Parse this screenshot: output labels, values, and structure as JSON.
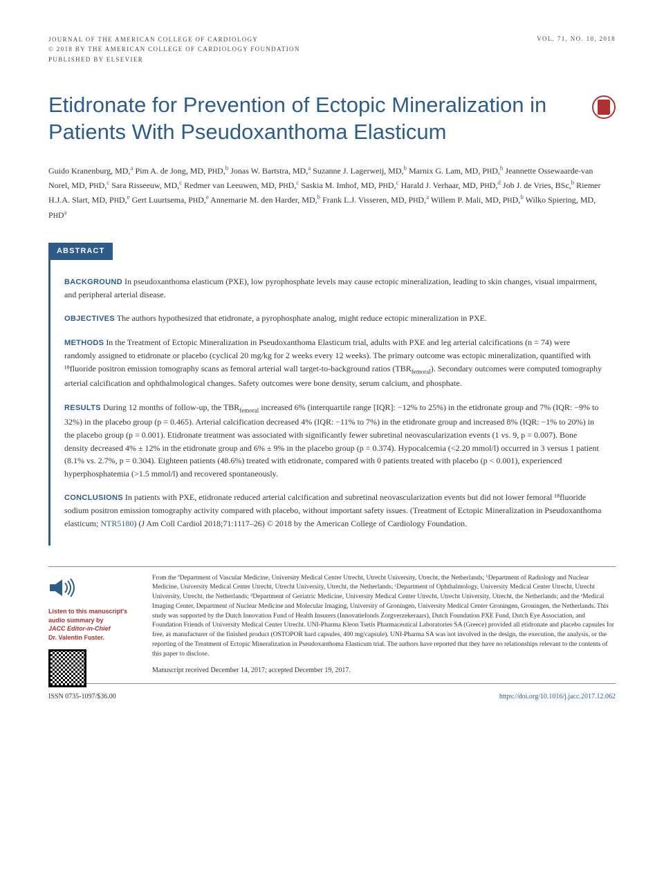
{
  "header": {
    "journal": "JOURNAL OF THE AMERICAN COLLEGE OF CARDIOLOGY",
    "copyright": "© 2018 BY THE AMERICAN COLLEGE OF CARDIOLOGY FOUNDATION",
    "publisher": "PUBLISHED BY ELSEVIER",
    "issue": "VOL. 71, NO. 10, 2018"
  },
  "title": "Etidronate for Prevention of Ectopic Mineralization in Patients With Pseudoxanthoma Elasticum",
  "authors_html": "Guido Kranenburg, MD,<sup>a</sup> Pim A. de Jong, MD, P<small>H</small>D,<sup>b</sup> Jonas W. Bartstra, MD,<sup>a</sup> Suzanne J. Lagerweij, MD,<sup>b</sup> Marnix G. Lam, MD, P<small>H</small>D,<sup>b</sup> Jeannette Ossewaarde-van Norel, MD, P<small>H</small>D,<sup>c</sup> Sara Risseeuw, MD,<sup>c</sup> Redmer van Leeuwen, MD, P<small>H</small>D,<sup>c</sup> Saskia M. Imhof, MD, P<small>H</small>D,<sup>c</sup> Harald J. Verhaar, MD, P<small>H</small>D,<sup>d</sup> Job J. de Vries, BSc,<sup>b</sup> Riemer H.J.A. Slart, MD, P<small>H</small>D,<sup>e</sup> Gert Luurtsema, P<small>H</small>D,<sup>e</sup> Annemarie M. den Harder, MD,<sup>b</sup> Frank L.J. Visseren, MD, P<small>H</small>D,<sup>a</sup> Willem P. Mali, MD, P<small>H</small>D,<sup>b</sup> Wilko Spiering, MD, P<small>H</small>D<sup>a</sup>",
  "abstract": {
    "label": "ABSTRACT",
    "background_label": "BACKGROUND",
    "background": "In pseudoxanthoma elasticum (PXE), low pyrophosphate levels may cause ectopic mineralization, leading to skin changes, visual impairment, and peripheral arterial disease.",
    "objectives_label": "OBJECTIVES",
    "objectives": "The authors hypothesized that etidronate, a pyrophosphate analog, might reduce ectopic mineralization in PXE.",
    "methods_label": "METHODS",
    "methods": "In the Treatment of Ectopic Mineralization in Pseudoxanthoma Elasticum trial, adults with PXE and leg arterial calcifications (n = 74) were randomly assigned to etidronate or placebo (cyclical 20 mg/kg for 2 weeks every 12 weeks). The primary outcome was ectopic mineralization, quantified with ¹⁸fluoride positron emission tomography scans as femoral arterial wall target-to-background ratios (TBRfemoral). Secondary outcomes were computed tomography arterial calcification and ophthalmological changes. Safety outcomes were bone density, serum calcium, and phosphate.",
    "results_label": "RESULTS",
    "results": "During 12 months of follow-up, the TBRfemoral increased 6% (interquartile range [IQR]: −12% to 25%) in the etidronate group and 7% (IQR: −9% to 32%) in the placebo group (p = 0.465). Arterial calcification decreased 4% (IQR: −11% to 7%) in the etidronate group and increased 8% (IQR: −1% to 20%) in the placebo group (p = 0.001). Etidronate treatment was associated with significantly fewer subretinal neovascularization events (1 vs. 9, p = 0.007). Bone density decreased 4% ± 12% in the etidronate group and 6% ± 9% in the placebo group (p = 0.374). Hypocalcemia (<2.20 mmol/l) occurred in 3 versus 1 patient (8.1% vs. 2.7%, p = 0.304). Eighteen patients (48.6%) treated with etidronate, compared with 0 patients treated with placebo (p < 0.001), experienced hyperphosphatemia (>1.5 mmol/l) and recovered spontaneously.",
    "conclusions_label": "CONCLUSIONS",
    "conclusions_a": "In patients with PXE, etidronate reduced arterial calcification and subretinal neovascularization events but did not lower femoral ¹⁸fluoride sodium positron emission tomography activity compared with placebo, without important safety issues. (Treatment of Ectopic Mineralization in Pseudoxanthoma elasticum; ",
    "trial": "NTR5180",
    "conclusions_b": ") (J Am Coll Cardiol 2018;71:1117–26) © 2018 by the American College of Cardiology Foundation."
  },
  "sidebar": {
    "listen_line1": "Listen to this manuscript's",
    "listen_line2": "audio summary by",
    "listen_line3": "JACC Editor-in-Chief",
    "listen_line4": "Dr. Valentin Fuster."
  },
  "affiliations": "From the ªDepartment of Vascular Medicine, University Medical Center Utrecht, Utrecht University, Utrecht, the Netherlands; ᵇDepartment of Radiology and Nuclear Medicine, University Medical Center Utrecht, Utrecht University, Utrecht, the Netherlands; ᶜDepartment of Ophthalmology, University Medical Center Utrecht, Utrecht University, Utrecht, the Netherlands; ᵈDepartment of Geriatric Medicine, University Medical Center Utrecht, Utrecht University, Utrecht, the Netherlands; and the ᵉMedical Imaging Center, Department of Nuclear Medicine and Molecular Imaging, University of Groningen, University Medical Center Groningen, Groningen, the Netherlands. This study was supported by the Dutch Innovation Fund of Health Insurers (Innovatiefonds Zorgverzekeraars), Dutch Foundation PXE Fund, Dutch Eye Association, and Foundation Friends of University Medical Center Utrecht. UNI-Pharma Kleon Tsetis Pharmaceutical Laboratories SA (Greece) provided all etidronate and placebo capsules for free, as manufacturer of the finished product (OSTOPOR hard capsules, 400 mg/capsule). UNI-Pharma SA was not involved in the design, the execution, the analysis, or the reporting of the Treatment of Ectopic Mineralization in Pseudoxanthoma Elasticum trial. The authors have reported that they have no relationships relevant to the contents of this paper to disclose.",
  "manuscript_date": "Manuscript received December 14, 2017; accepted December 19, 2017.",
  "footer": {
    "issn": "ISSN 0735-1097/$36.00",
    "doi": "https://doi.org/10.1016/j.jacc.2017.12.062"
  },
  "colors": {
    "accent_blue": "#2e5c8a",
    "accent_red": "#b03030",
    "text": "#333333",
    "background": "#ffffff"
  }
}
